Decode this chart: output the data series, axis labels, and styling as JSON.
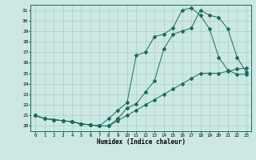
{
  "xlabel": "Humidex (Indice chaleur)",
  "background_color": "#cce8e4",
  "grid_color": "#aaccc8",
  "line_color": "#1a6b5a",
  "xlim": [
    -0.5,
    23.5
  ],
  "ylim": [
    19.5,
    31.5
  ],
  "xticks": [
    0,
    1,
    2,
    3,
    4,
    5,
    6,
    7,
    8,
    9,
    10,
    11,
    12,
    13,
    14,
    15,
    16,
    17,
    18,
    19,
    20,
    21,
    22,
    23
  ],
  "yticks": [
    20,
    21,
    22,
    23,
    24,
    25,
    26,
    27,
    28,
    29,
    30,
    31
  ],
  "series1_x": [
    0,
    1,
    2,
    3,
    4,
    5,
    6,
    7,
    8,
    9,
    10,
    11,
    12,
    13,
    14,
    15,
    16,
    17,
    18,
    19,
    20,
    21,
    22,
    23
  ],
  "series1_y": [
    21.0,
    20.7,
    20.6,
    20.5,
    20.4,
    20.2,
    20.1,
    20.0,
    20.0,
    20.5,
    21.0,
    21.5,
    22.0,
    22.5,
    23.0,
    23.5,
    24.0,
    24.5,
    25.0,
    25.0,
    25.0,
    25.2,
    25.4,
    25.5
  ],
  "series2_x": [
    0,
    1,
    2,
    3,
    4,
    5,
    6,
    7,
    8,
    9,
    10,
    11,
    12,
    13,
    14,
    15,
    16,
    17,
    18,
    19,
    20,
    21,
    22,
    23
  ],
  "series2_y": [
    21.0,
    20.7,
    20.6,
    20.5,
    20.4,
    20.2,
    20.1,
    20.0,
    20.0,
    20.7,
    21.7,
    22.1,
    23.2,
    24.3,
    27.3,
    28.7,
    29.0,
    29.3,
    31.0,
    30.5,
    30.3,
    29.2,
    26.5,
    25.1
  ],
  "series3_x": [
    0,
    1,
    2,
    3,
    4,
    5,
    6,
    7,
    8,
    9,
    10,
    11,
    12,
    13,
    14,
    15,
    16,
    17,
    18,
    19,
    20,
    21,
    22,
    23
  ],
  "series3_y": [
    21.0,
    20.7,
    20.6,
    20.5,
    20.4,
    20.2,
    20.1,
    20.0,
    20.7,
    21.5,
    22.2,
    26.7,
    27.0,
    28.5,
    28.7,
    29.3,
    31.0,
    31.2,
    30.5,
    29.2,
    26.5,
    25.3,
    24.9,
    24.9
  ]
}
